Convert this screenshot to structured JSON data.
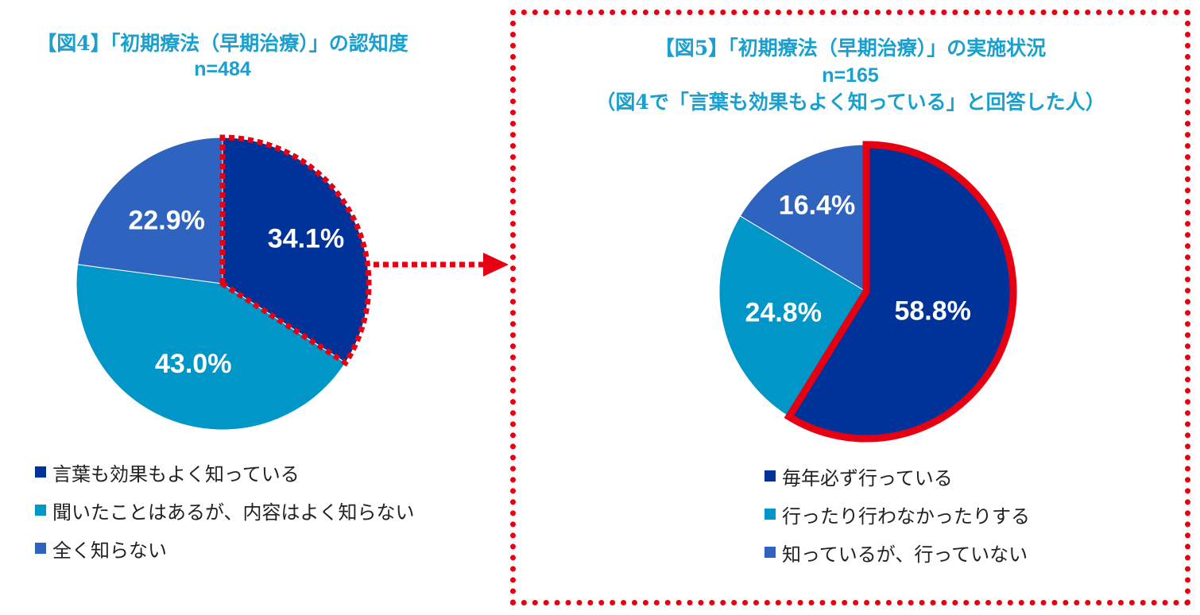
{
  "colors": {
    "dark_blue": "#003399",
    "cyan": "#0096c8",
    "mid_blue": "#2e64c0",
    "red": "#e60012",
    "title": "#1aa0cf"
  },
  "chart_data": [
    {
      "type": "pie",
      "title": "【図4】「初期療法（早期治療）」の認知度",
      "subtitle": "n=484",
      "categories": [
        "言葉も効果もよく知っている",
        "聞いたことはあるが、内容はよく知らない",
        "全く知らない"
      ],
      "values": [
        34.1,
        43.0,
        22.9
      ],
      "labels": [
        "34.1%",
        "43.0%",
        "22.9%"
      ],
      "legend": "bottom"
    },
    {
      "type": "pie",
      "title": "【図5】「初期療法（早期治療）」の実施状況",
      "subtitle": "n=165",
      "note": "（図4で「言葉も効果もよく知っている」と回答した人）",
      "categories": [
        "毎年必ず行っている",
        "行ったり行わなかったりする",
        "知っているが、行っていない"
      ],
      "values": [
        58.8,
        24.8,
        16.4
      ],
      "labels": [
        "58.8%",
        "24.8%",
        "16.4%"
      ],
      "legend": "bottom"
    }
  ]
}
